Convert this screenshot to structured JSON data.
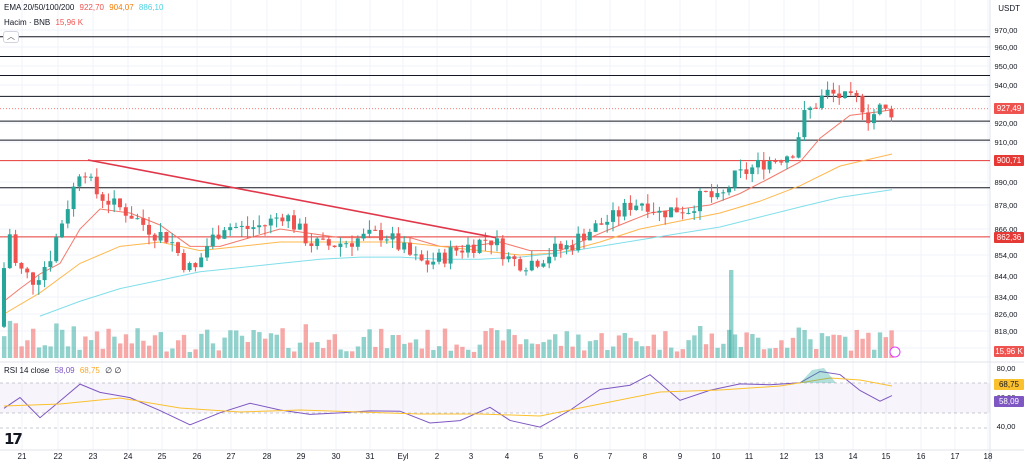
{
  "header": {
    "ema_label": "EMA 20/50/100/200",
    "ema_values": [
      "922,70",
      "904,07",
      "886,10"
    ],
    "volume_label": "Hacim · BNB",
    "volume_value": "15,96 K",
    "rsi_label": "RSI 14 close",
    "rsi_values": [
      "58,09",
      "68,75"
    ],
    "rsi_extra": "∅ ∅",
    "currency": "USDT",
    "collapse_icon": "chevron-up-icon"
  },
  "tags": {
    "price": "927,49",
    "level1": "900,71",
    "level2": "862,36",
    "volume": "15,96 K",
    "rsi_ma": "68,75",
    "rsi": "58,09"
  },
  "colors": {
    "up": "#26a69a",
    "down": "#ef5350",
    "ema20": "#f4796b",
    "ema50": "#ffb74d",
    "ema100": "#80deea",
    "rsi": "#7e57c2",
    "rsi_ma": "#fbc02d",
    "trend": "#e0374a"
  },
  "chart_data": {
    "type": "candlestick",
    "symbol": "BNB/USDT",
    "price_axis_ticks": [
      "970,00",
      "960,00",
      "950,00",
      "940,00",
      "920,00",
      "910,00",
      "890,00",
      "878,00",
      "866,00",
      "854,00",
      "844,00",
      "834,00",
      "826,00",
      "818,00",
      "810,00"
    ],
    "x_tick_labels": [
      "21",
      "22",
      "23",
      "24",
      "25",
      "26",
      "27",
      "28",
      "29",
      "30",
      "31",
      "Eyl",
      "2",
      "3",
      "4",
      "5",
      "6",
      "7",
      "8",
      "9",
      "10",
      "11",
      "12",
      "13",
      "14",
      "15",
      "16",
      "17",
      "18"
    ],
    "rsi_ticks": [
      "80,00",
      "60,00",
      "40,00"
    ],
    "horizontal_levels": [
      966,
      955,
      945,
      934,
      921,
      911,
      887
    ],
    "highlight_levels": [
      900.71,
      862.36
    ],
    "current_price": 927.49,
    "trendline": {
      "from": {
        "day": 23,
        "price": 901
      },
      "to": {
        "day": "3 Eyl",
        "price": 862
      }
    },
    "indicators": {
      "ema20": 922.7,
      "ema50": 904.07,
      "ema100": 886.1,
      "rsi": 58.09,
      "rsi_ma": 68.75
    }
  }
}
